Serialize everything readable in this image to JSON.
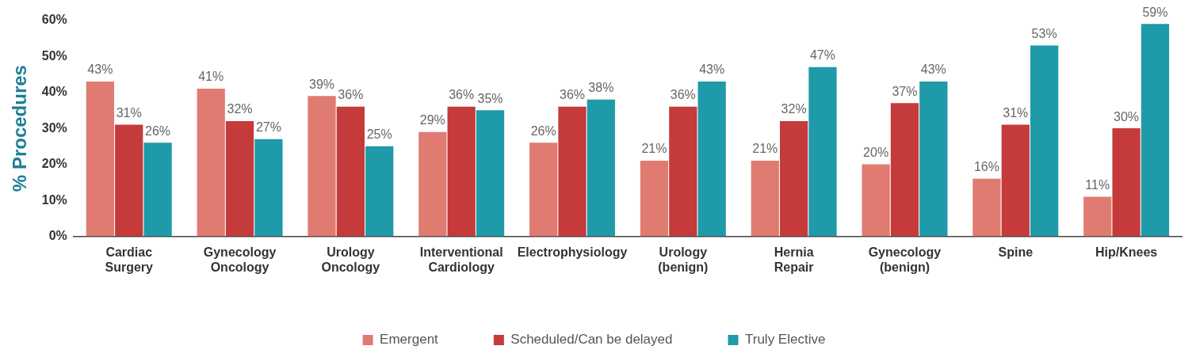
{
  "chart_data": {
    "type": "bar",
    "ylabel": "% Procedures",
    "categories": [
      "Cardiac Surgery",
      "Gynecology Oncology",
      "Urology Oncology",
      "Interventional Cardiology",
      "Electrophysiology",
      "Urology (benign)",
      "Hernia Repair",
      "Gynecology (benign)",
      "Spine",
      "Hip/Knees"
    ],
    "series": [
      {
        "name": "Emergent",
        "color": "#e07b72",
        "values": [
          43,
          41,
          39,
          29,
          26,
          21,
          21,
          20,
          16,
          11
        ],
        "value_labels": [
          "43%",
          "41%",
          "39%",
          "29%",
          "26%",
          "21%",
          "21%",
          "20%",
          "16%",
          "11%"
        ]
      },
      {
        "name": "Scheduled/Can be delayed",
        "color": "#c53a3a",
        "values": [
          31,
          32,
          36,
          36,
          36,
          36,
          32,
          37,
          31,
          30
        ],
        "value_labels": [
          "31%",
          "32%",
          "36%",
          "36%",
          "36%",
          "36%",
          "32%",
          "37%",
          "31%",
          "30%"
        ]
      },
      {
        "name": "Truly Elective",
        "color": "#1f9aa8",
        "values": [
          26,
          27,
          25,
          35,
          38,
          43,
          47,
          43,
          53,
          59
        ],
        "value_labels": [
          "26%",
          "27%",
          "25%",
          "35%",
          "38%",
          "43%",
          "47%",
          "43%",
          "53%",
          "59%"
        ]
      }
    ],
    "ylim": [
      0,
      60
    ],
    "yticks": [
      {
        "value": 0,
        "label": "0%"
      },
      {
        "value": 10,
        "label": "10%"
      },
      {
        "value": 20,
        "label": "20%"
      },
      {
        "value": 30,
        "label": "30%"
      },
      {
        "value": 40,
        "label": "40%"
      },
      {
        "value": 50,
        "label": "50%"
      },
      {
        "value": 60,
        "label": "60%"
      }
    ],
    "grid": false,
    "legend": "bottom"
  }
}
